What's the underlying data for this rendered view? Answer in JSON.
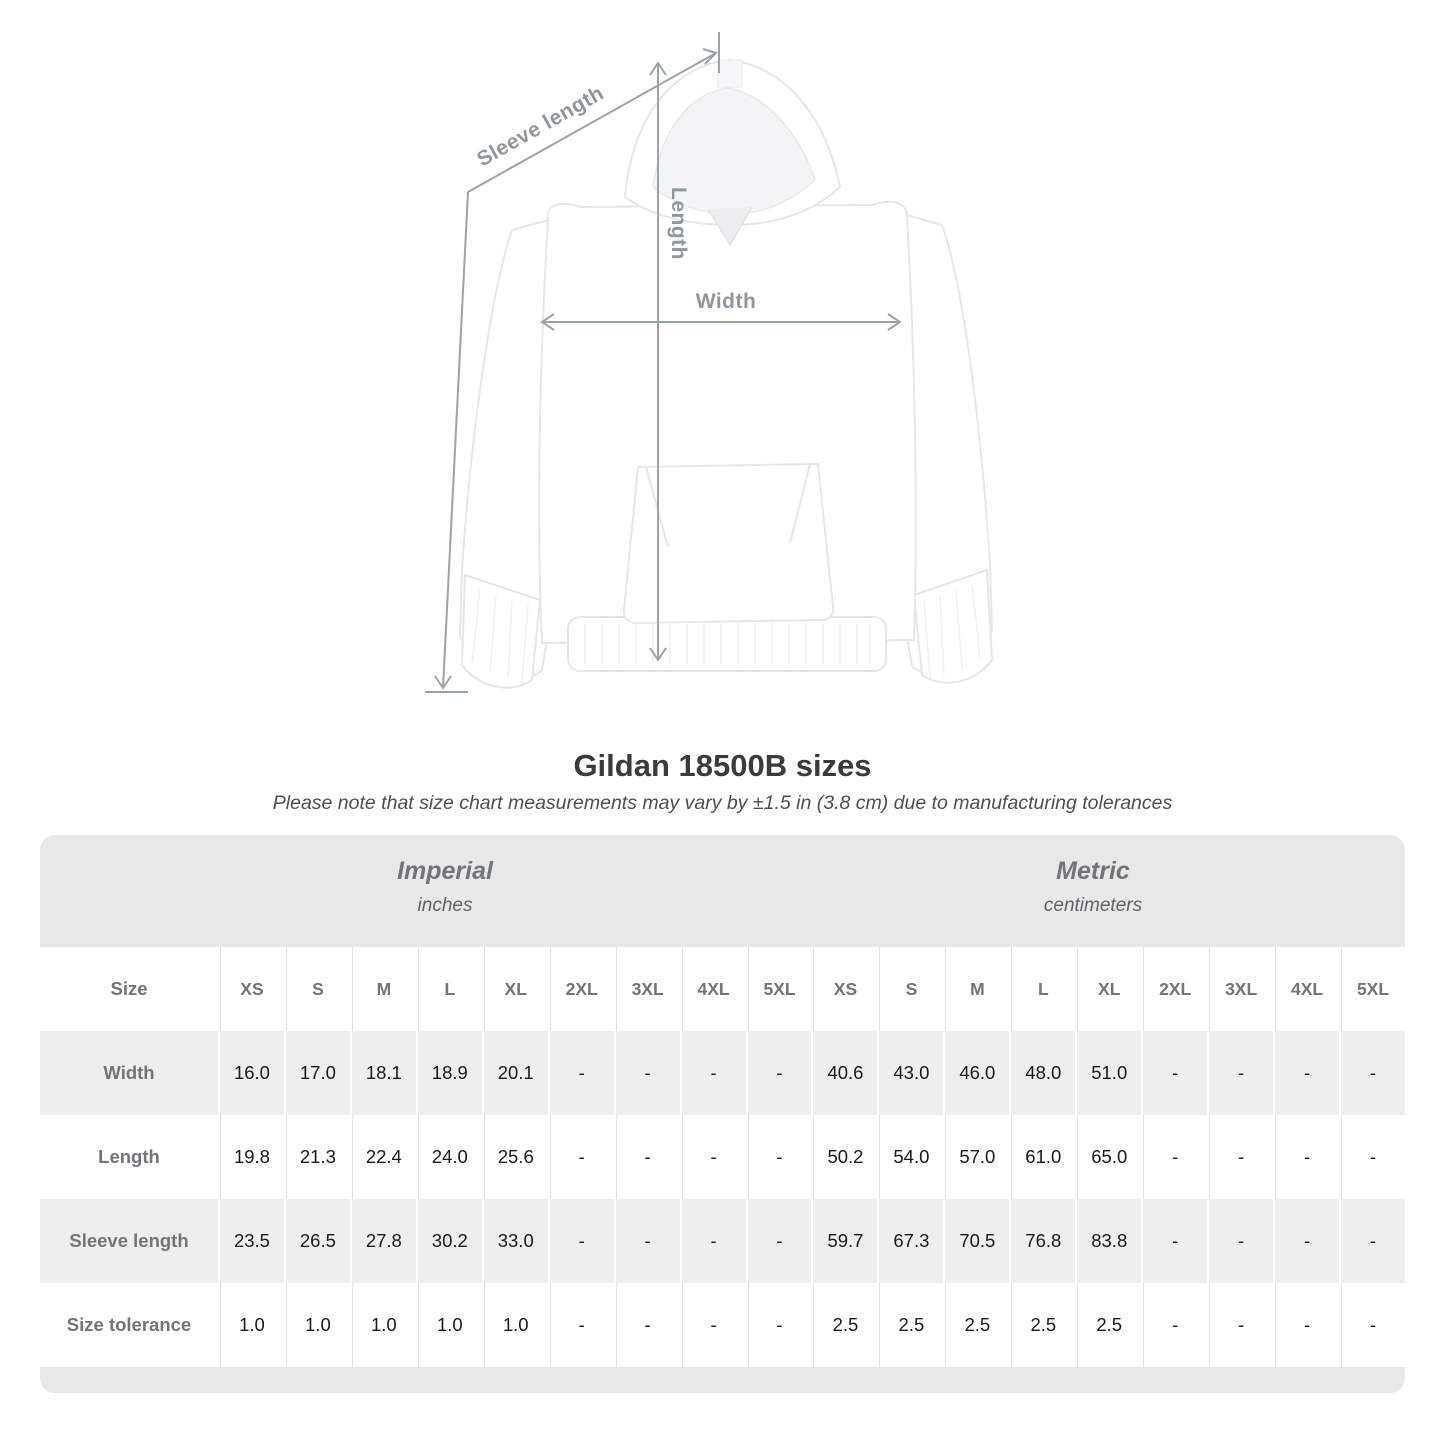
{
  "title": "Gildan 18500B sizes",
  "subtitle": "Please note that size chart measurements may vary by ±1.5 in (3.8 cm) due to manufacturing tolerances",
  "diagram": {
    "sleeve_label": "Sleeve length",
    "length_label": "Length",
    "width_label": "Width",
    "arrow_color": "#9aa3a8",
    "label_color": "#8f979c"
  },
  "table": {
    "size_label": "Size",
    "sizes": [
      "XS",
      "S",
      "M",
      "L",
      "XL",
      "2XL",
      "3XL",
      "4XL",
      "5XL"
    ],
    "unit_groups": [
      {
        "name": "Imperial",
        "unit": "inches"
      },
      {
        "name": "Metric",
        "unit": "centimeters"
      }
    ],
    "rows": [
      {
        "label": "Width",
        "imperial": [
          "16.0",
          "17.0",
          "18.1",
          "18.9",
          "20.1",
          "-",
          "-",
          "-",
          "-"
        ],
        "metric": [
          "40.6",
          "43.0",
          "46.0",
          "48.0",
          "51.0",
          "-",
          "-",
          "-",
          "-"
        ]
      },
      {
        "label": "Length",
        "imperial": [
          "19.8",
          "21.3",
          "22.4",
          "24.0",
          "25.6",
          "-",
          "-",
          "-",
          "-"
        ],
        "metric": [
          "50.2",
          "54.0",
          "57.0",
          "61.0",
          "65.0",
          "-",
          "-",
          "-",
          "-"
        ]
      },
      {
        "label": "Sleeve length",
        "imperial": [
          "23.5",
          "26.5",
          "27.8",
          "30.2",
          "33.0",
          "-",
          "-",
          "-",
          "-"
        ],
        "metric": [
          "59.7",
          "67.3",
          "70.5",
          "76.8",
          "83.8",
          "-",
          "-",
          "-",
          "-"
        ]
      },
      {
        "label": "Size tolerance",
        "imperial": [
          "1.0",
          "1.0",
          "1.0",
          "1.0",
          "1.0",
          "-",
          "-",
          "-",
          "-"
        ],
        "metric": [
          "2.5",
          "2.5",
          "2.5",
          "2.5",
          "2.5",
          "-",
          "-",
          "-",
          "-"
        ]
      }
    ],
    "colors": {
      "band": "#e8e8e8",
      "stripe": "#eeeeee",
      "header_text": "#6f7579",
      "value_text": "#1a1a1a"
    }
  }
}
